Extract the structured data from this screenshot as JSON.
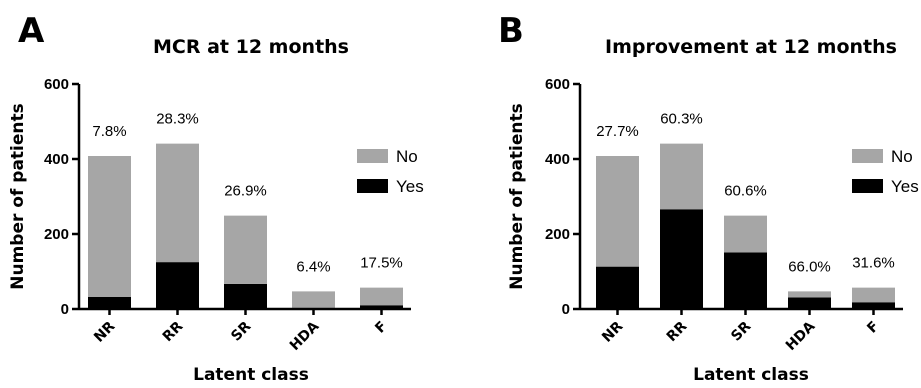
{
  "chart_data": [
    {
      "type": "bar",
      "stacked": true,
      "panel_letter": "A",
      "title": "MCR at 12 months",
      "xlabel": "Latent class",
      "ylabel": "Number of patients",
      "ylim": [
        0,
        600
      ],
      "yticks": [
        0,
        200,
        400,
        600
      ],
      "categories": [
        "NR",
        "RR",
        "SR",
        "HDA",
        "F"
      ],
      "series": [
        {
          "name": "Yes",
          "color": "#000000",
          "values": [
            32,
            125,
            67,
            3,
            10
          ]
        },
        {
          "name": "No",
          "color": "#a6a6a6",
          "values": [
            376,
            316,
            182,
            44,
            47
          ]
        }
      ],
      "data_labels": [
        "7.8%",
        "28.3%",
        "26.9%",
        "6.4%",
        "17.5%"
      ],
      "legend_position": "right",
      "grid": false
    },
    {
      "type": "bar",
      "stacked": true,
      "panel_letter": "B",
      "title": "Improvement at 12 months",
      "xlabel": "Latent class",
      "ylabel": "Number of patients",
      "ylim": [
        0,
        600
      ],
      "yticks": [
        0,
        200,
        400,
        600
      ],
      "categories": [
        "NR",
        "RR",
        "SR",
        "HDA",
        "F"
      ],
      "series": [
        {
          "name": "Yes",
          "color": "#000000",
          "values": [
            113,
            266,
            151,
            31,
            18
          ]
        },
        {
          "name": "No",
          "color": "#a6a6a6",
          "values": [
            295,
            175,
            98,
            16,
            39
          ]
        }
      ],
      "data_labels": [
        "27.7%",
        "60.3%",
        "60.6%",
        "66.0%",
        "31.6%"
      ],
      "legend_position": "right",
      "grid": false
    }
  ]
}
